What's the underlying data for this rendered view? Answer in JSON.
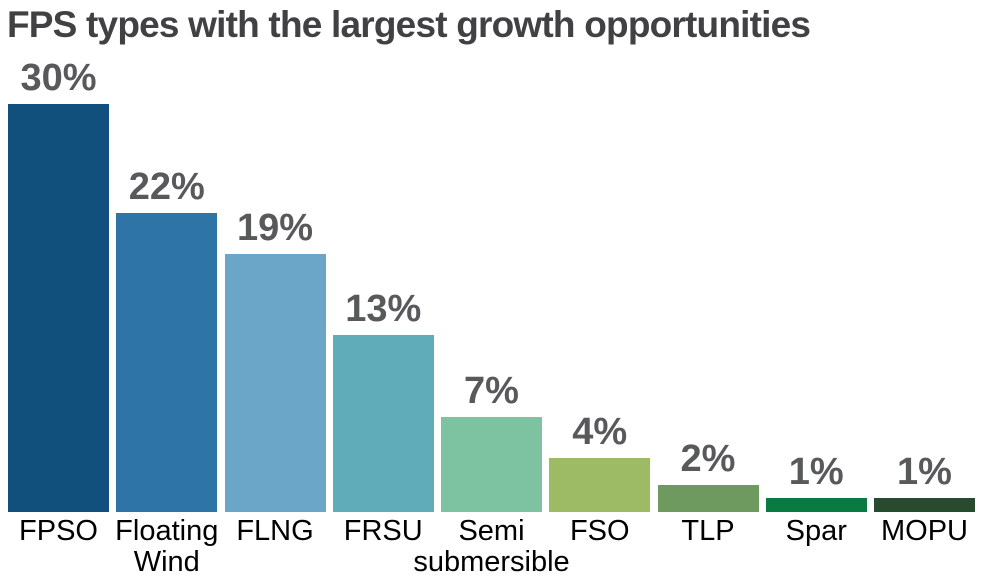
{
  "page": {
    "background": "#ffffff"
  },
  "chart_data": {
    "type": "bar",
    "orientation": "vertical",
    "title": "FPS types with the largest growth opportunities",
    "categories": [
      "FPSO",
      "Floating\nWind",
      "FLNG",
      "FRSU",
      "Semi\nsubmersible",
      "FSO",
      "TLP",
      "Spar",
      "MOPU"
    ],
    "values": [
      30,
      22,
      19,
      13,
      7,
      4,
      2,
      1,
      1
    ],
    "value_labels": [
      "30%",
      "22%",
      "19%",
      "13%",
      "7%",
      "4%",
      "2%",
      "1%",
      "1%"
    ],
    "bar_colors": [
      "#114f7c",
      "#2f74a7",
      "#6ba6c9",
      "#60adb9",
      "#7ec3a1",
      "#9cbb64",
      "#6f9a5f",
      "#077b41",
      "#264b2e"
    ],
    "title_color": "#414042",
    "value_label_color": "#58595b",
    "category_label_color": "#000000",
    "ylim": [
      0,
      30
    ],
    "grid": false,
    "legend": false,
    "axes_shown": false
  }
}
